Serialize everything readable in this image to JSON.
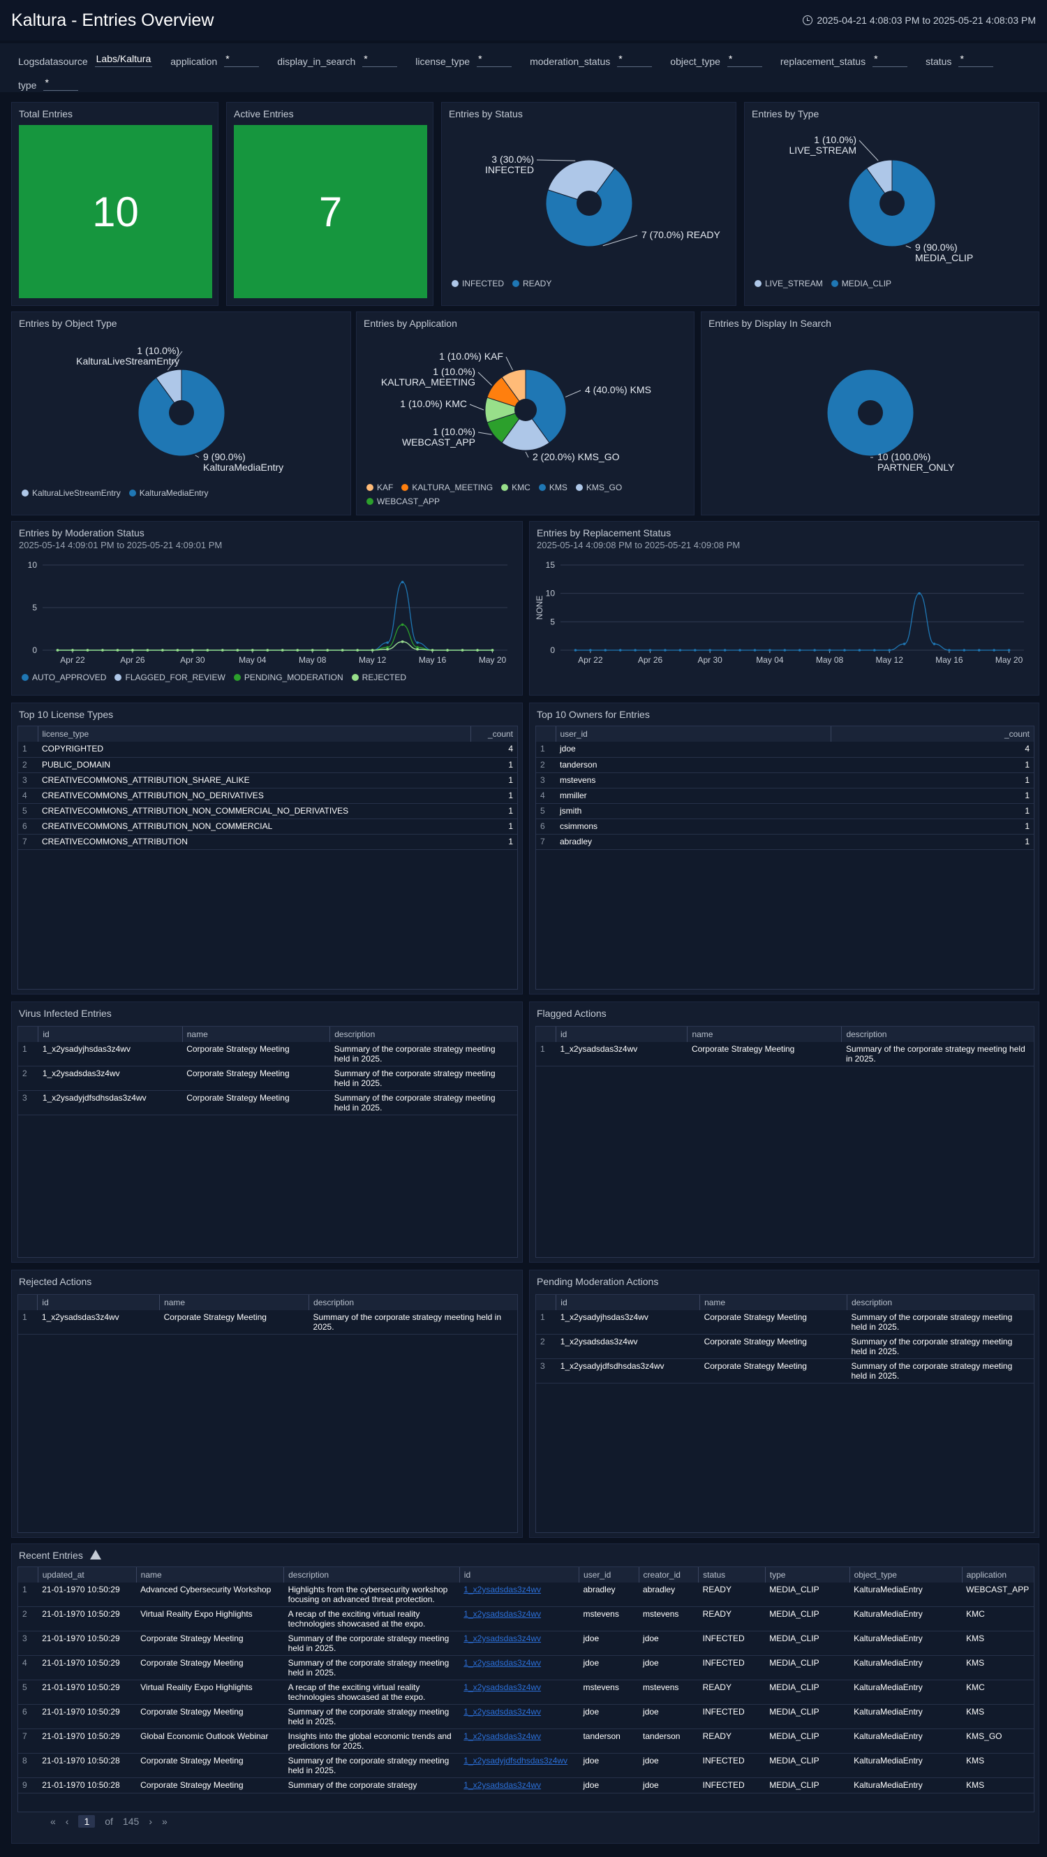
{
  "header": {
    "title": "Kaltura - Entries Overview",
    "time_range": "2025-04-21 4:08:03 PM to 2025-05-21 4:08:03 PM"
  },
  "filters": [
    {
      "label": "Logsdatasource",
      "value": "Labs/Kaltura"
    },
    {
      "label": "application",
      "value": "*"
    },
    {
      "label": "display_in_search",
      "value": "*"
    },
    {
      "label": "license_type",
      "value": "*"
    },
    {
      "label": "moderation_status",
      "value": "*"
    },
    {
      "label": "object_type",
      "value": "*"
    },
    {
      "label": "replacement_status",
      "value": "*"
    },
    {
      "label": "status",
      "value": "*"
    },
    {
      "label": "type",
      "value": "*"
    }
  ],
  "colors": {
    "stat_green": "#16963e",
    "dark_blue": "#1f77b4",
    "light_blue": "#aec7e8",
    "orange": "#ff7f0e",
    "light_orange": "#ffbb78",
    "green": "#2ca02c",
    "light_green": "#98df8a"
  },
  "panels": {
    "total_entries": {
      "title": "Total Entries",
      "value": "10"
    },
    "active_entries": {
      "title": "Active Entries",
      "value": "7"
    },
    "by_status": {
      "title": "Entries by Status"
    },
    "by_type": {
      "title": "Entries by Type"
    },
    "by_object_type": {
      "title": "Entries by Object Type"
    },
    "by_application": {
      "title": "Entries by Application"
    },
    "by_display": {
      "title": "Entries by Display In Search"
    },
    "moderation": {
      "title": "Entries by Moderation Status",
      "subtitle": "2025-05-14 4:09:01 PM to 2025-05-21 4:09:01 PM"
    },
    "replacement": {
      "title": "Entries by Replacement Status",
      "subtitle": "2025-05-14 4:09:08 PM to 2025-05-21 4:09:08 PM"
    },
    "license": {
      "title": "Top 10 License Types"
    },
    "owners": {
      "title": "Top 10 Owners for Entries"
    },
    "virus": {
      "title": "Virus Infected Entries"
    },
    "flagged": {
      "title": "Flagged Actions"
    },
    "rejected": {
      "title": "Rejected Actions"
    },
    "pending": {
      "title": "Pending Moderation Actions"
    },
    "recent": {
      "title": "Recent Entries"
    }
  },
  "chart_data": [
    {
      "type": "pie",
      "id": "status",
      "slices": [
        {
          "name": "INFECTED",
          "value": 3,
          "label1": "3 (30.0%)",
          "label2": "INFECTED",
          "color": "#aec7e8"
        },
        {
          "name": "READY",
          "value": 7,
          "label1": "7 (70.0%) READY",
          "label2": "",
          "color": "#1f77b4"
        }
      ],
      "legend": [
        "INFECTED",
        "READY"
      ]
    },
    {
      "type": "pie",
      "id": "type",
      "slices": [
        {
          "name": "LIVE_STREAM",
          "value": 1,
          "label1": "1 (10.0%)",
          "label2": "LIVE_STREAM",
          "color": "#aec7e8"
        },
        {
          "name": "MEDIA_CLIP",
          "value": 9,
          "label1": "9 (90.0%)",
          "label2": "MEDIA_CLIP",
          "color": "#1f77b4"
        }
      ],
      "legend": [
        "LIVE_STREAM",
        "MEDIA_CLIP"
      ]
    },
    {
      "type": "pie",
      "id": "objtype",
      "slices": [
        {
          "name": "KalturaLiveStreamEntry",
          "value": 1,
          "label1": "1 (10.0%)",
          "label2": "KalturaLiveStreamEntry",
          "color": "#aec7e8"
        },
        {
          "name": "KalturaMediaEntry",
          "value": 9,
          "label1": "9 (90.0%)",
          "label2": "KalturaMediaEntry",
          "color": "#1f77b4"
        }
      ],
      "legend": [
        "KalturaLiveStreamEntry",
        "KalturaMediaEntry"
      ]
    },
    {
      "type": "pie",
      "id": "app",
      "slices": [
        {
          "name": "KAF",
          "value": 1,
          "label1": "1 (10.0%) KAF",
          "label2": "",
          "color": "#ffbb78"
        },
        {
          "name": "KALTURA_MEETING",
          "value": 1,
          "label1": "1 (10.0%)",
          "label2": "KALTURA_MEETING",
          "color": "#ff7f0e"
        },
        {
          "name": "KMC",
          "value": 1,
          "label1": "1 (10.0%) KMC",
          "label2": "",
          "color": "#98df8a"
        },
        {
          "name": "KMS",
          "value": 4,
          "label1": "4 (40.0%) KMS",
          "label2": "",
          "color": "#1f77b4"
        },
        {
          "name": "KMS_GO",
          "value": 2,
          "label1": "2 (20.0%) KMS_GO",
          "label2": "",
          "color": "#aec7e8"
        },
        {
          "name": "WEBCAST_APP",
          "value": 1,
          "label1": "1 (10.0%)",
          "label2": "WEBCAST_APP",
          "color": "#2ca02c"
        }
      ],
      "legend": [
        "KAF",
        "KALTURA_MEETING",
        "KMC",
        "KMS",
        "KMS_GO",
        "WEBCAST_APP"
      ]
    },
    {
      "type": "pie",
      "id": "display",
      "slices": [
        {
          "name": "PARTNER_ONLY",
          "value": 10,
          "label1": "10 (100.0%)",
          "label2": "PARTNER_ONLY",
          "color": "#1f77b4"
        }
      ],
      "legend": []
    },
    {
      "type": "line",
      "id": "moderation",
      "x": [
        "Apr 22",
        "Apr 26",
        "Apr 30",
        "May 04",
        "May 08",
        "May 12",
        "May 16",
        "May 20"
      ],
      "ylim": [
        0,
        10
      ],
      "yticks": [
        0,
        5,
        10
      ],
      "peak_x": "May 14",
      "series": [
        {
          "name": "AUTO_APPROVED",
          "peak": 8,
          "color": "#1f77b4"
        },
        {
          "name": "FLAGGED_FOR_REVIEW",
          "peak": 1,
          "color": "#aec7e8"
        },
        {
          "name": "PENDING_MODERATION",
          "peak": 3,
          "color": "#2ca02c"
        },
        {
          "name": "REJECTED",
          "peak": 1,
          "color": "#98df8a"
        }
      ]
    },
    {
      "type": "line",
      "id": "replacement",
      "x": [
        "Apr 22",
        "Apr 26",
        "Apr 30",
        "May 04",
        "May 08",
        "May 12",
        "May 16",
        "May 20"
      ],
      "ylim": [
        0,
        15
      ],
      "yticks": [
        0,
        5,
        10,
        15
      ],
      "ylabel": "NONE",
      "peak_x": "May 14",
      "series": [
        {
          "name": "NONE",
          "peak": 10,
          "color": "#1f77b4"
        }
      ]
    }
  ],
  "tables": {
    "license": {
      "columns": [
        "license_type",
        "_count"
      ],
      "rows": [
        [
          "COPYRIGHTED",
          "4"
        ],
        [
          "PUBLIC_DOMAIN",
          "1"
        ],
        [
          "CREATIVECOMMONS_ATTRIBUTION_SHARE_ALIKE",
          "1"
        ],
        [
          "CREATIVECOMMONS_ATTRIBUTION_NO_DERIVATIVES",
          "1"
        ],
        [
          "CREATIVECOMMONS_ATTRIBUTION_NON_COMMERCIAL_NO_DERIVATIVES",
          "1"
        ],
        [
          "CREATIVECOMMONS_ATTRIBUTION_NON_COMMERCIAL",
          "1"
        ],
        [
          "CREATIVECOMMONS_ATTRIBUTION",
          "1"
        ]
      ]
    },
    "owners": {
      "columns": [
        "user_id",
        "_count"
      ],
      "rows": [
        [
          "jdoe",
          "4"
        ],
        [
          "tanderson",
          "1"
        ],
        [
          "mstevens",
          "1"
        ],
        [
          "mmiller",
          "1"
        ],
        [
          "jsmith",
          "1"
        ],
        [
          "csimmons",
          "1"
        ],
        [
          "abradley",
          "1"
        ]
      ]
    },
    "virus": {
      "columns": [
        "id",
        "name",
        "description"
      ],
      "rows": [
        [
          "1_x2ysadyjhsdas3z4wv",
          "Corporate Strategy Meeting",
          "Summary of the corporate strategy meeting held in 2025."
        ],
        [
          "1_x2ysadsdas3z4wv",
          "Corporate Strategy Meeting",
          "Summary of the corporate strategy meeting held in 2025."
        ],
        [
          "1_x2ysadyjdfsdhsdas3z4wv",
          "Corporate Strategy Meeting",
          "Summary of the corporate strategy meeting held in 2025."
        ]
      ]
    },
    "flagged": {
      "columns": [
        "id",
        "name",
        "description"
      ],
      "rows": [
        [
          "1_x2ysadsdas3z4wv",
          "Corporate Strategy Meeting",
          "Summary of the corporate strategy meeting held in 2025."
        ]
      ]
    },
    "rejected": {
      "columns": [
        "id",
        "name",
        "description"
      ],
      "rows": [
        [
          "1_x2ysadsdas3z4wv",
          "Corporate Strategy Meeting",
          "Summary of the corporate strategy meeting held in 2025."
        ]
      ]
    },
    "pending": {
      "columns": [
        "id",
        "name",
        "description"
      ],
      "rows": [
        [
          "1_x2ysadyjhsdas3z4wv",
          "Corporate Strategy Meeting",
          "Summary of the corporate strategy meeting held in 2025."
        ],
        [
          "1_x2ysadsdas3z4wv",
          "Corporate Strategy Meeting",
          "Summary of the corporate strategy meeting held in 2025."
        ],
        [
          "1_x2ysadyjdfsdhsdas3z4wv",
          "Corporate Strategy Meeting",
          "Summary of the corporate strategy meeting held in 2025."
        ]
      ]
    },
    "recent": {
      "columns": [
        "updated_at",
        "name",
        "description",
        "id",
        "user_id",
        "creator_id",
        "status",
        "type",
        "object_type",
        "application"
      ],
      "rows": [
        [
          "21-01-1970 10:50:29",
          "Advanced Cybersecurity Workshop",
          "Highlights from the cybersecurity workshop focusing on advanced threat protection.",
          "1_x2ysadsdas3z4wv",
          "abradley",
          "abradley",
          "READY",
          "MEDIA_CLIP",
          "KalturaMediaEntry",
          "WEBCAST_APP"
        ],
        [
          "21-01-1970 10:50:29",
          "Virtual Reality Expo Highlights",
          "A recap of the exciting virtual reality technologies showcased at the expo.",
          "1_x2ysadsdas3z4wv",
          "mstevens",
          "mstevens",
          "READY",
          "MEDIA_CLIP",
          "KalturaMediaEntry",
          "KMC"
        ],
        [
          "21-01-1970 10:50:29",
          "Corporate Strategy Meeting",
          "Summary of the corporate strategy meeting held in 2025.",
          "1_x2ysadsdas3z4wv",
          "jdoe",
          "jdoe",
          "INFECTED",
          "MEDIA_CLIP",
          "KalturaMediaEntry",
          "KMS"
        ],
        [
          "21-01-1970 10:50:29",
          "Corporate Strategy Meeting",
          "Summary of the corporate strategy meeting held in 2025.",
          "1_x2ysadsdas3z4wv",
          "jdoe",
          "jdoe",
          "INFECTED",
          "MEDIA_CLIP",
          "KalturaMediaEntry",
          "KMS"
        ],
        [
          "21-01-1970 10:50:29",
          "Virtual Reality Expo Highlights",
          "A recap of the exciting virtual reality technologies showcased at the expo.",
          "1_x2ysadsdas3z4wv",
          "mstevens",
          "mstevens",
          "READY",
          "MEDIA_CLIP",
          "KalturaMediaEntry",
          "KMC"
        ],
        [
          "21-01-1970 10:50:29",
          "Corporate Strategy Meeting",
          "Summary of the corporate strategy meeting held in 2025.",
          "1_x2ysadsdas3z4wv",
          "jdoe",
          "jdoe",
          "INFECTED",
          "MEDIA_CLIP",
          "KalturaMediaEntry",
          "KMS"
        ],
        [
          "21-01-1970 10:50:29",
          "Global Economic Outlook Webinar",
          "Insights into the global economic trends and predictions for 2025.",
          "1_x2ysadsdas3z4wv",
          "tanderson",
          "tanderson",
          "READY",
          "MEDIA_CLIP",
          "KalturaMediaEntry",
          "KMS_GO"
        ],
        [
          "21-01-1970 10:50:28",
          "Corporate Strategy Meeting",
          "Summary of the corporate strategy meeting held in 2025.",
          "1_x2ysadyjdfsdhsdas3z4wv",
          "jdoe",
          "jdoe",
          "INFECTED",
          "MEDIA_CLIP",
          "KalturaMediaEntry",
          "KMS"
        ],
        [
          "21-01-1970 10:50:28",
          "Corporate Strategy Meeting",
          "Summary of the corporate strategy",
          "1_x2ysadsdas3z4wv",
          "jdoe",
          "jdoe",
          "INFECTED",
          "MEDIA_CLIP",
          "KalturaMediaEntry",
          "KMS"
        ]
      ]
    }
  },
  "pager": {
    "current": "1",
    "of": "of",
    "total": "145"
  }
}
